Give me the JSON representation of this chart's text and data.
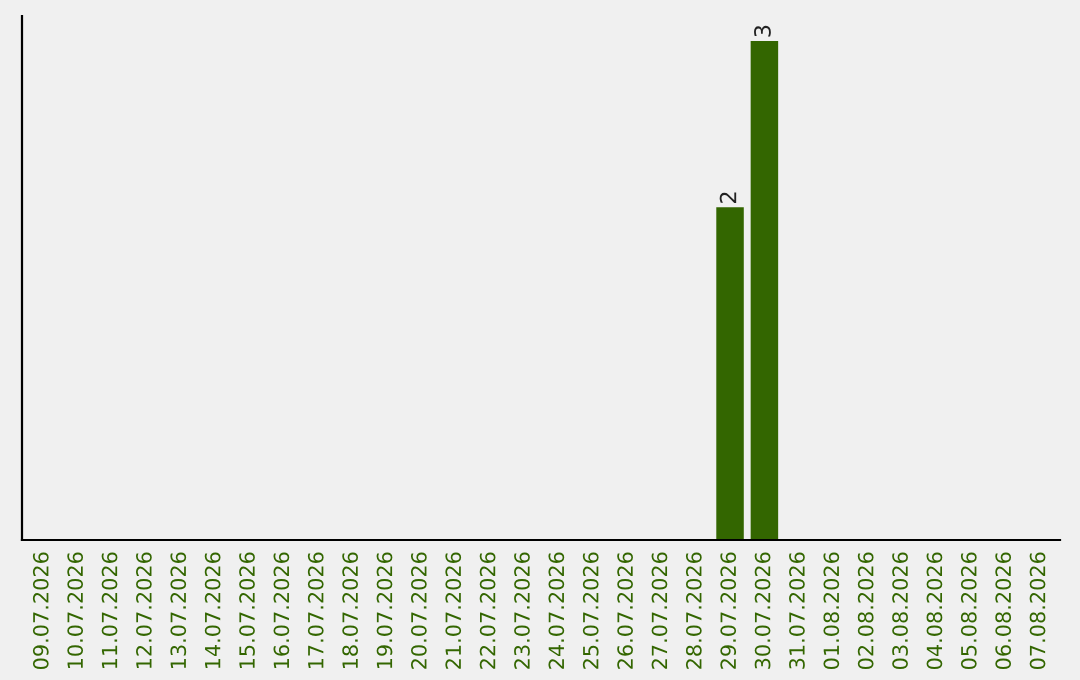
{
  "chart_data": {
    "type": "bar",
    "categories": [
      "09.07.2026",
      "10.07.2026",
      "11.07.2026",
      "12.07.2026",
      "13.07.2026",
      "14.07.2026",
      "15.07.2026",
      "16.07.2026",
      "17.07.2026",
      "18.07.2026",
      "19.07.2026",
      "20.07.2026",
      "21.07.2026",
      "22.07.2026",
      "23.07.2026",
      "24.07.2026",
      "25.07.2026",
      "26.07.2026",
      "27.07.2026",
      "28.07.2026",
      "29.07.2026",
      "30.07.2026",
      "31.07.2026",
      "01.08.2026",
      "02.08.2026",
      "03.08.2026",
      "04.08.2026",
      "05.08.2026",
      "06.08.2026",
      "07.08.2026"
    ],
    "values": [
      null,
      null,
      null,
      null,
      null,
      null,
      null,
      null,
      null,
      null,
      null,
      null,
      null,
      null,
      null,
      null,
      null,
      null,
      null,
      null,
      2,
      3,
      null,
      null,
      null,
      null,
      null,
      null,
      null,
      null
    ],
    "value_labels": [
      null,
      null,
      null,
      null,
      null,
      null,
      null,
      null,
      null,
      null,
      null,
      null,
      null,
      null,
      null,
      null,
      null,
      null,
      null,
      null,
      "2",
      "3",
      null,
      null,
      null,
      null,
      null,
      null,
      null,
      null
    ],
    "color": "#336600",
    "ylim": [
      0,
      3.15
    ],
    "tick_labels": "x",
    "grid": false,
    "legend": false
  }
}
